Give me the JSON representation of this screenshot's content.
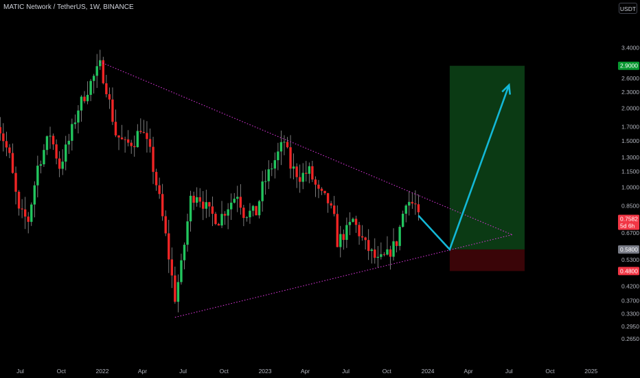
{
  "header": {
    "title": "MATIC Network / TetherUS, 1W, BINANCE",
    "currency": "USDT"
  },
  "colors": {
    "background": "#000000",
    "up": "#22c55e",
    "down": "#ef2525",
    "triangle": "#d635d6",
    "arrow": "#13b8d6",
    "target_zone": "#0b3a14",
    "stop_zone": "#3a0508"
  },
  "chart_data": {
    "type": "candlestick",
    "symbol": "MATIC Network / TetherUS",
    "interval": "1W",
    "exchange": "BINANCE",
    "y_scale": "log",
    "ylim": [
      0.24,
      4.0
    ],
    "y_ticks": [
      "3.4000",
      "2.6000",
      "2.3000",
      "2.0000",
      "1.7000",
      "1.5000",
      "1.3000",
      "1.1500",
      "1.0000",
      "0.8500",
      "0.6700",
      "0.5300",
      "0.4200",
      "0.3700",
      "0.3300",
      "0.2950",
      "0.2650"
    ],
    "x_ticks": [
      "Jul",
      "Oct",
      "2022",
      "Apr",
      "Jul",
      "Oct",
      "2023",
      "Apr",
      "Jul",
      "Oct",
      "2024",
      "Apr",
      "Jul",
      "Oct",
      "2025"
    ],
    "price_badges": [
      {
        "value": "2.9000",
        "color": "#089830"
      },
      {
        "value": "0.7582",
        "sub": "5d 6h",
        "color": "#f23645"
      },
      {
        "value": "0.5800",
        "color": "#787b86"
      },
      {
        "value": "0.4800",
        "color": "#f23645"
      }
    ],
    "last_price": 0.7582,
    "countdown": "5d 6h",
    "triangle": {
      "upper_line": [
        [
          "2021-12-27",
          3.0
        ],
        [
          "2024-07-08",
          0.66
        ]
      ],
      "lower_line": [
        [
          "2022-06-13",
          0.32
        ],
        [
          "2024-07-08",
          0.66
        ]
      ]
    },
    "projection_path": [
      [
        "2023-12-11",
        0.78
      ],
      [
        "2024-02-19",
        0.58
      ],
      [
        "2024-07-01",
        2.45
      ]
    ],
    "target_zone": {
      "from": "2024-02-19",
      "to": "2024-08-05",
      "low": 0.58,
      "high": 2.9
    },
    "stop_zone": {
      "from": "2024-02-19",
      "to": "2024-08-05",
      "low": 0.48,
      "high": 0.58
    }
  }
}
